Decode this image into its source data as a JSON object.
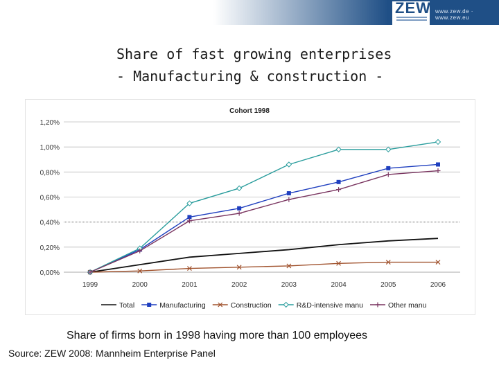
{
  "header": {
    "logo_text": "ZEW",
    "url": "www.zew.de · www.zew.eu",
    "colors": {
      "bar": "#1f4f86",
      "logo": "#1f4f86"
    }
  },
  "slide": {
    "title_line1": "Share of fast growing enterprises",
    "title_line2": "- Manufacturing & construction -",
    "caption": "Share of firms born in 1998 having more than 100 employees",
    "source": "Source: ZEW 2008: Mannheim Enterprise Panel"
  },
  "chart_data": {
    "type": "line",
    "title": "Cohort 1998",
    "xlabel": "",
    "ylabel": "",
    "x": [
      "1999",
      "2000",
      "2001",
      "2002",
      "2003",
      "2004",
      "2005",
      "2006"
    ],
    "y_ticks": [
      "0,00%",
      "0,20%",
      "0,40%",
      "0,60%",
      "0,80%",
      "1,00%",
      "1,20%"
    ],
    "ylim": [
      0,
      1.2
    ],
    "grid": "horizontal",
    "legend_position": "bottom",
    "series": [
      {
        "name": "Total",
        "color": "#111111",
        "marker": "none",
        "values": [
          0.0,
          0.06,
          0.12,
          0.15,
          0.18,
          0.22,
          0.25,
          0.27
        ]
      },
      {
        "name": "Manufacturing",
        "color": "#1f3fbf",
        "marker": "square",
        "values": [
          0.0,
          0.18,
          0.44,
          0.51,
          0.63,
          0.72,
          0.83,
          0.86
        ]
      },
      {
        "name": "Construction",
        "color": "#a0522d",
        "marker": "x",
        "values": [
          0.0,
          0.01,
          0.03,
          0.04,
          0.05,
          0.07,
          0.08,
          0.08
        ]
      },
      {
        "name": "R&D-intensive manu",
        "color": "#2a9d9d",
        "marker": "diamond",
        "values": [
          0.0,
          0.19,
          0.55,
          0.67,
          0.86,
          0.98,
          0.98,
          1.04
        ]
      },
      {
        "name": "Other manu",
        "color": "#7a3560",
        "marker": "plus",
        "values": [
          0.0,
          0.17,
          0.41,
          0.47,
          0.58,
          0.66,
          0.78,
          0.81
        ]
      }
    ]
  }
}
